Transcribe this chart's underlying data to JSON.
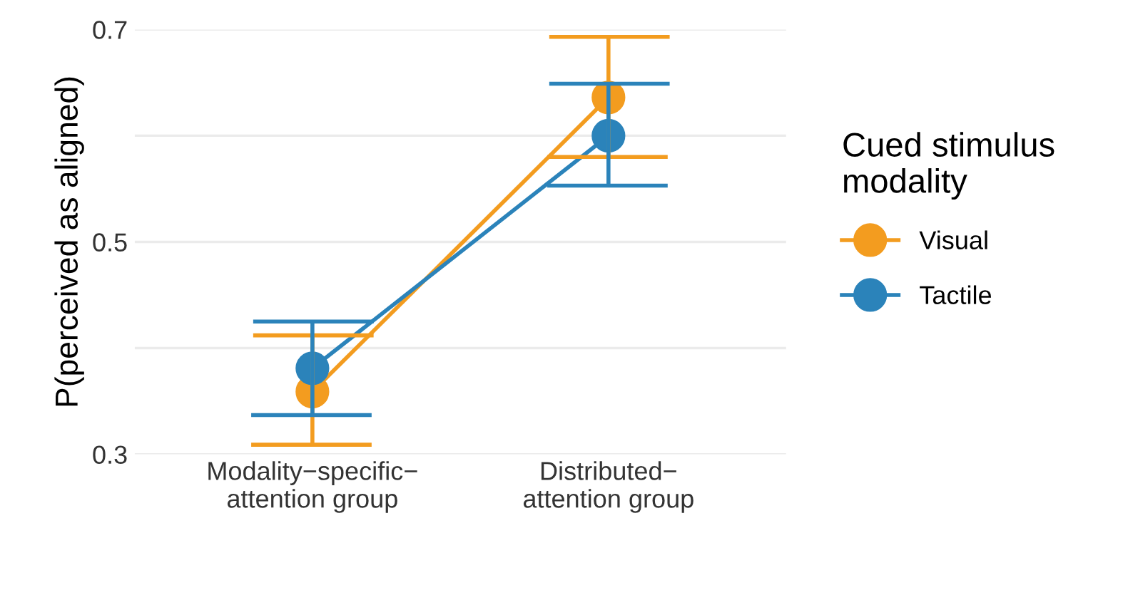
{
  "chart_data": {
    "type": "line",
    "ylabel": "P(perceived as aligned)",
    "legend_title": "Cued stimulus\nmodality",
    "categories": [
      "Modality−specific−\nattention group",
      "Distributed−\nattention group"
    ],
    "series": [
      {
        "name": "Visual",
        "color": "#f39c1f",
        "values": [
          0.359,
          0.636
        ],
        "errors": [
          [
            0.309,
            0.412
          ],
          [
            0.58,
            0.693
          ]
        ]
      },
      {
        "name": "Tactile",
        "color": "#2b83ba",
        "values": [
          0.381,
          0.6
        ],
        "errors": [
          [
            0.337,
            0.425
          ],
          [
            0.553,
            0.649
          ]
        ]
      }
    ],
    "ylim": [
      0.3,
      0.7
    ],
    "yticks": [
      0.3,
      {
        "value": 0.4,
        "label": null
      },
      0.5,
      {
        "value": 0.6,
        "label": null
      },
      0.7
    ],
    "grid": "y",
    "legend": "right",
    "marker": "circle",
    "line_style": "solid"
  }
}
